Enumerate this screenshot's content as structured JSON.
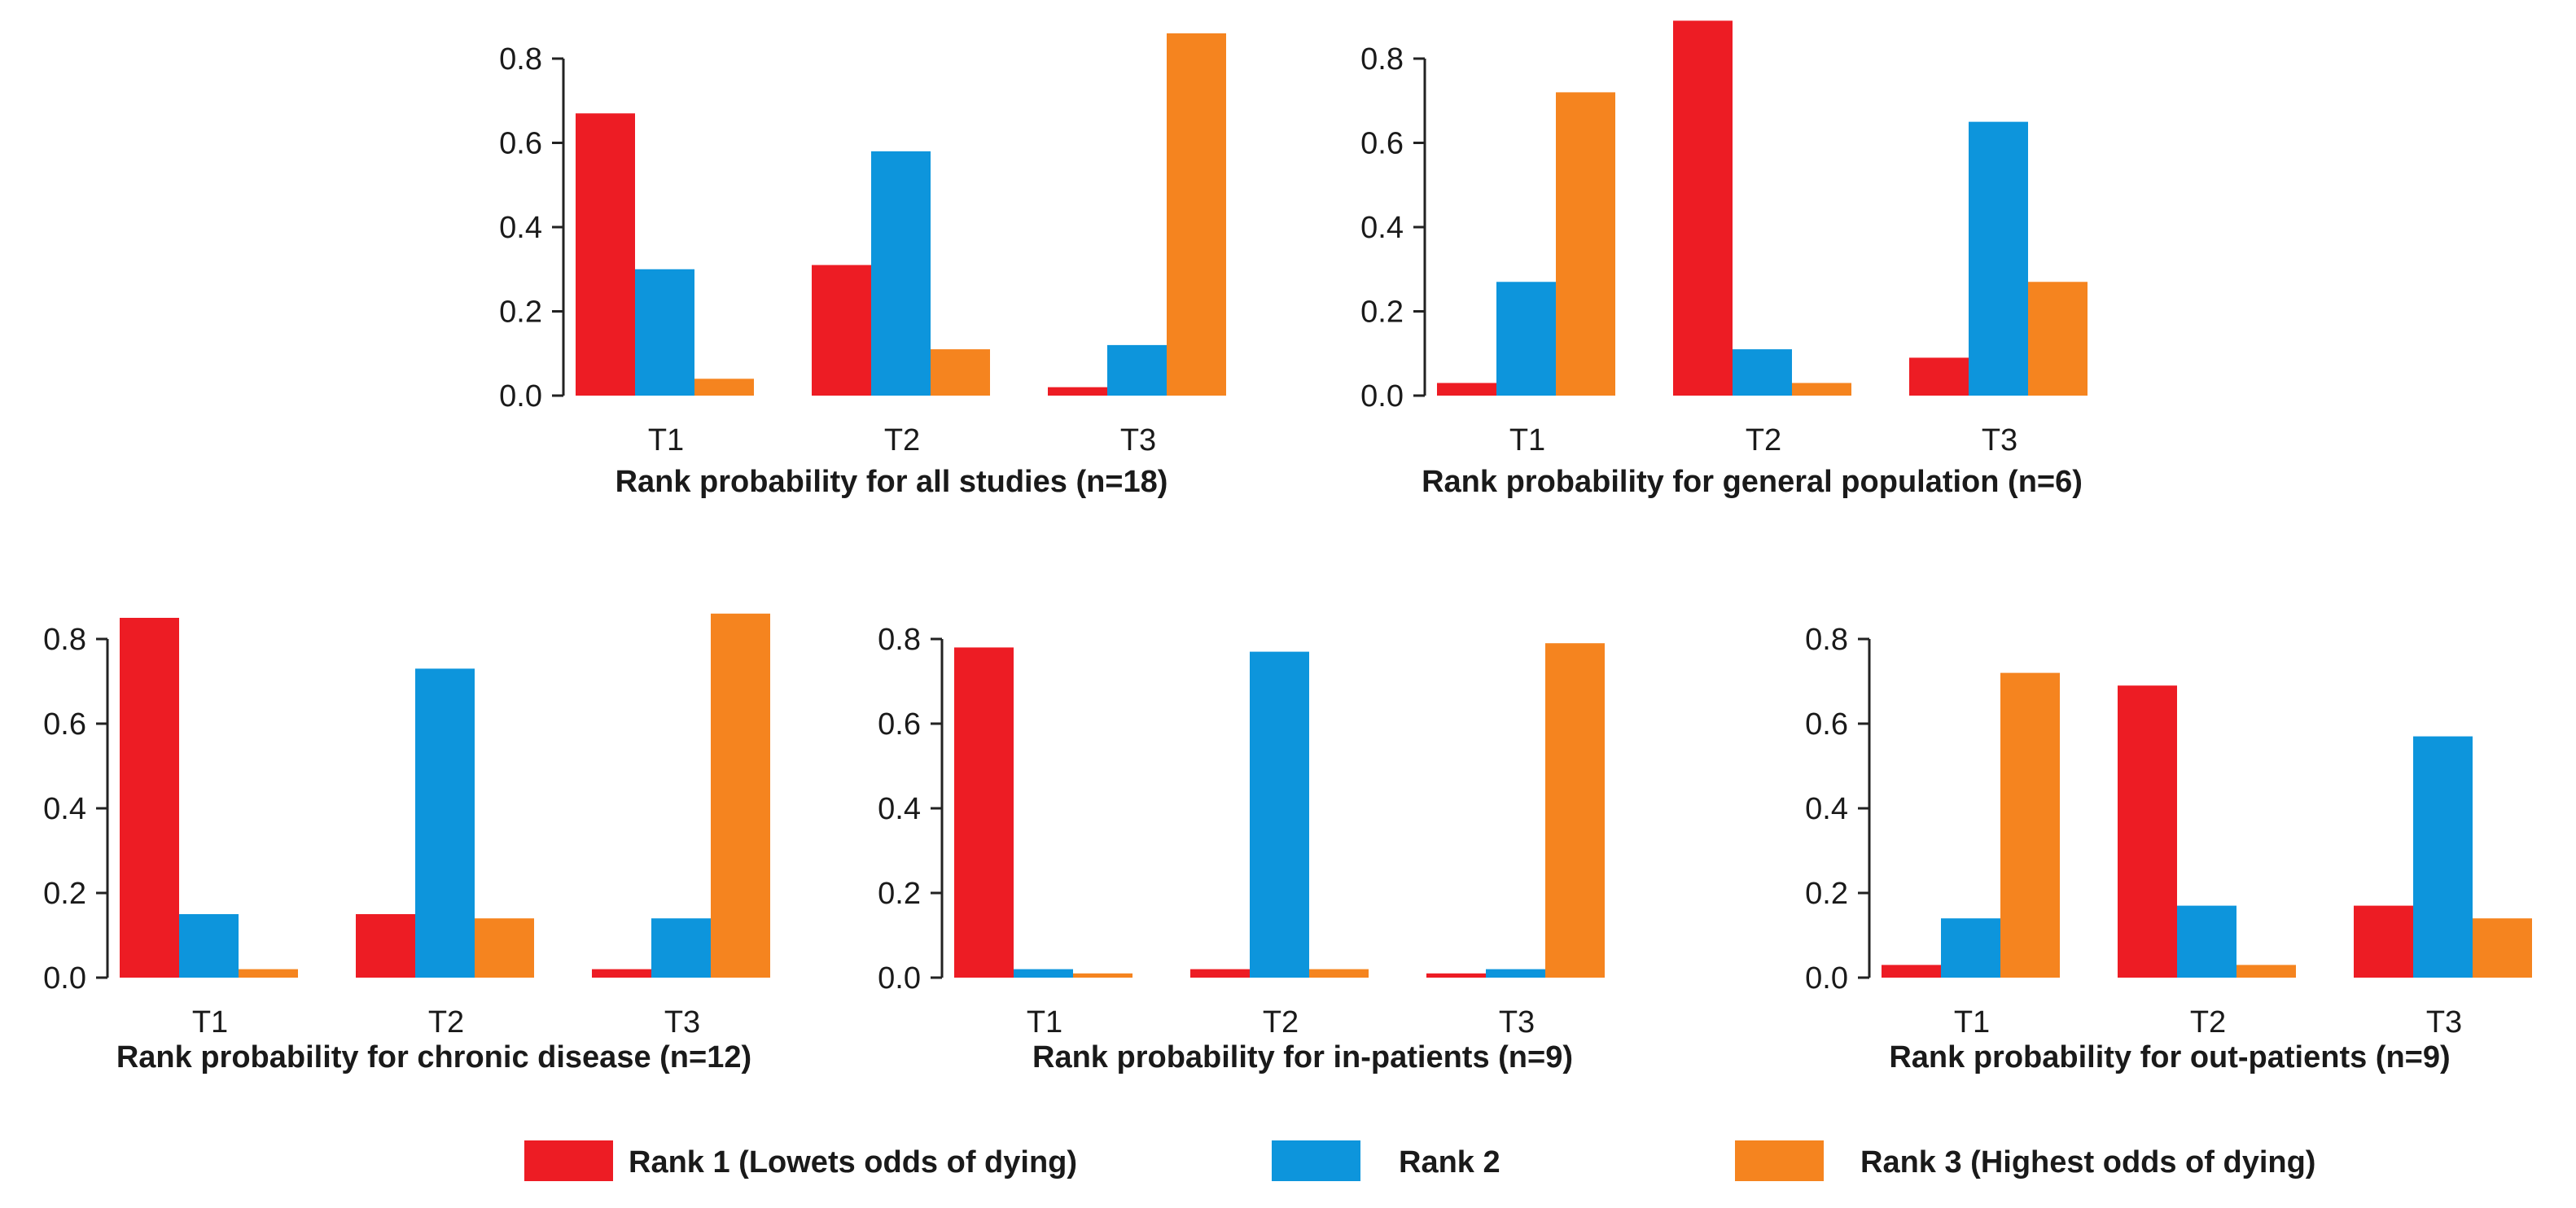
{
  "colors": {
    "rank1": "#ed1c24",
    "rank2": "#0d95dc",
    "rank3": "#f5841f"
  },
  "legend": [
    {
      "label": "Rank 1 (Lowets odds of dying)",
      "color": "#ed1c24"
    },
    {
      "label": "Rank 2",
      "color": "#0d95dc"
    },
    {
      "label": "Rank 3 (Highest odds of dying)",
      "color": "#f5841f"
    }
  ],
  "chart_data": [
    {
      "type": "bar",
      "title": "Rank probability for all studies (n=18)",
      "categories": [
        "T1",
        "T2",
        "T3"
      ],
      "yticks": [
        "0.0",
        "0.2",
        "0.4",
        "0.6",
        "0.8"
      ],
      "ylim": [
        0,
        0.8
      ],
      "series": [
        {
          "name": "Rank 1 (Lowets odds of dying)",
          "values": [
            0.67,
            0.31,
            0.02
          ]
        },
        {
          "name": "Rank 2",
          "values": [
            0.3,
            0.58,
            0.12
          ]
        },
        {
          "name": "Rank 3 (Highest odds of dying)",
          "values": [
            0.04,
            0.11,
            0.86
          ]
        }
      ]
    },
    {
      "type": "bar",
      "title": "Rank probability for general population (n=6)",
      "categories": [
        "T1",
        "T2",
        "T3"
      ],
      "yticks": [
        "0.0",
        "0.2",
        "0.4",
        "0.6",
        "0.8"
      ],
      "ylim": [
        0,
        0.8
      ],
      "series": [
        {
          "name": "Rank 1 (Lowets odds of dying)",
          "values": [
            0.03,
            0.89,
            0.09
          ]
        },
        {
          "name": "Rank 2",
          "values": [
            0.27,
            0.11,
            0.65
          ]
        },
        {
          "name": "Rank 3 (Highest odds of dying)",
          "values": [
            0.72,
            0.03,
            0.27
          ]
        }
      ]
    },
    {
      "type": "bar",
      "title": "Rank probability for chronic disease (n=12)",
      "categories": [
        "T1",
        "T2",
        "T3"
      ],
      "yticks": [
        "0.0",
        "0.2",
        "0.4",
        "0.6",
        "0.8"
      ],
      "ylim": [
        0,
        0.8
      ],
      "series": [
        {
          "name": "Rank 1 (Lowets odds of dying)",
          "values": [
            0.85,
            0.15,
            0.02
          ]
        },
        {
          "name": "Rank 2",
          "values": [
            0.15,
            0.73,
            0.14
          ]
        },
        {
          "name": "Rank 3 (Highest odds of dying)",
          "values": [
            0.02,
            0.14,
            0.86
          ]
        }
      ]
    },
    {
      "type": "bar",
      "title": "Rank probability for in-patients (n=9)",
      "categories": [
        "T1",
        "T2",
        "T3"
      ],
      "yticks": [
        "0.0",
        "0.2",
        "0.4",
        "0.6",
        "0.8"
      ],
      "ylim": [
        0,
        0.8
      ],
      "series": [
        {
          "name": "Rank 1 (Lowets odds of dying)",
          "values": [
            0.78,
            0.02,
            0.01
          ]
        },
        {
          "name": "Rank 2",
          "values": [
            0.02,
            0.77,
            0.02
          ]
        },
        {
          "name": "Rank 3 (Highest odds of dying)",
          "values": [
            0.01,
            0.02,
            0.79
          ]
        }
      ]
    },
    {
      "type": "bar",
      "title": "Rank probability for out-patients (n=9)",
      "categories": [
        "T1",
        "T2",
        "T3"
      ],
      "yticks": [
        "0.0",
        "0.2",
        "0.4",
        "0.6",
        "0.8"
      ],
      "ylim": [
        0,
        0.8
      ],
      "series": [
        {
          "name": "Rank 1 (Lowets odds of dying)",
          "values": [
            0.03,
            0.69,
            0.17
          ]
        },
        {
          "name": "Rank 2",
          "values": [
            0.14,
            0.17,
            0.57
          ]
        },
        {
          "name": "Rank 3 (Highest odds of dying)",
          "values": [
            0.72,
            0.03,
            0.14
          ]
        }
      ]
    }
  ]
}
